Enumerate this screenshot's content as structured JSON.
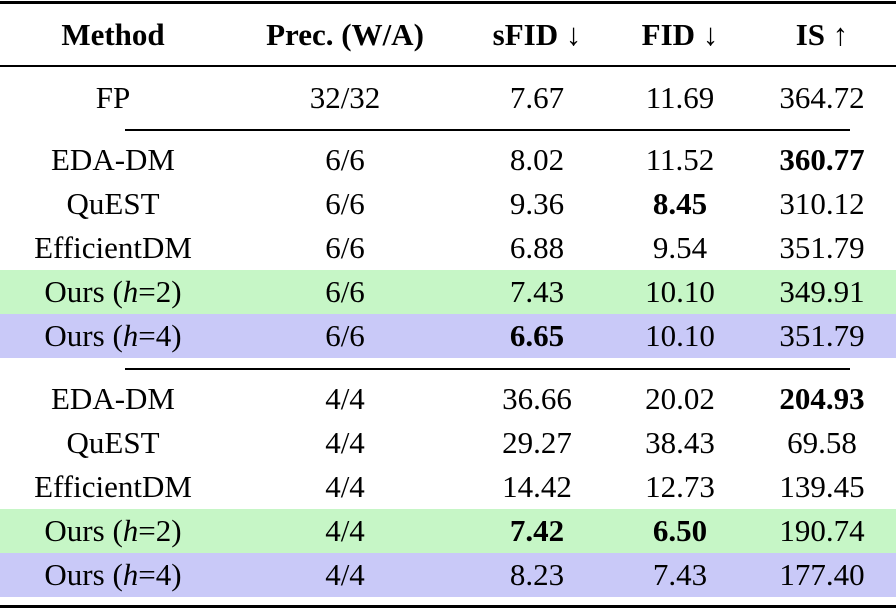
{
  "table": {
    "header": [
      "Method",
      "Prec. (W/A)",
      "sFID ↓",
      "FID ↓",
      "IS ↑"
    ],
    "groups": [
      {
        "rows": [
          {
            "cells": [
              "FP",
              "32/32",
              "7.67",
              "11.69",
              "364.72"
            ]
          }
        ]
      },
      {
        "rows": [
          {
            "cells": [
              "EDA-DM",
              "6/6",
              "8.02",
              "11.52",
              "360.77"
            ],
            "bold": [
              4
            ]
          },
          {
            "cells": [
              "QuEST",
              "6/6",
              "9.36",
              "8.45",
              "310.12"
            ],
            "bold": [
              3
            ]
          },
          {
            "cells": [
              "EfficientDM",
              "6/6",
              "6.88",
              "9.54",
              "351.79"
            ]
          },
          {
            "cells": [
              [
                "Ours (",
                "h",
                "=2)"
              ],
              "6/6",
              "7.43",
              "10.10",
              "349.91"
            ],
            "highlight": "#c6f6c6"
          },
          {
            "cells": [
              [
                "Ours (",
                "h",
                "=4)"
              ],
              "6/6",
              "6.65",
              "10.10",
              "351.79"
            ],
            "bold": [
              2
            ],
            "highlight": "#c9c9f8"
          }
        ]
      },
      {
        "rows": [
          {
            "cells": [
              "EDA-DM",
              "4/4",
              "36.66",
              "20.02",
              "204.93"
            ],
            "bold": [
              4
            ]
          },
          {
            "cells": [
              "QuEST",
              "4/4",
              "29.27",
              "38.43",
              "69.58"
            ]
          },
          {
            "cells": [
              "EfficientDM",
              "4/4",
              "14.42",
              "12.73",
              "139.45"
            ]
          },
          {
            "cells": [
              [
                "Ours (",
                "h",
                "=2)"
              ],
              "4/4",
              "7.42",
              "6.50",
              "190.74"
            ],
            "bold": [
              2,
              3
            ],
            "highlight": "#c6f6c6"
          },
          {
            "cells": [
              [
                "Ours (",
                "h",
                "=4)"
              ],
              "4/4",
              "8.23",
              "7.43",
              "177.40"
            ],
            "highlight": "#c9c9f8"
          }
        ]
      }
    ]
  }
}
